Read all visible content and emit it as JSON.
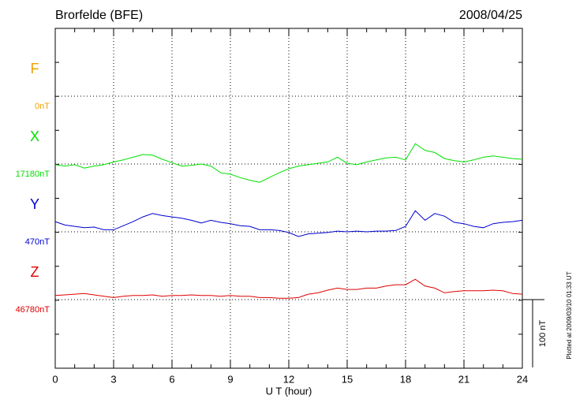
{
  "chart_data": {
    "type": "line",
    "title": "Brorfelde (BFE)",
    "date": "2008/04/25",
    "xlabel": "U T (hour)",
    "footnote": "Plotted at 2009/03/10 01:33 UT",
    "xlim": [
      0,
      24
    ],
    "xticks": [
      0,
      3,
      6,
      9,
      12,
      15,
      18,
      21,
      24
    ],
    "scale_bar": {
      "value": 100,
      "label": "100 nT"
    },
    "x": [
      0,
      0.5,
      1,
      1.5,
      2,
      2.5,
      3,
      3.5,
      4,
      4.5,
      5,
      5.5,
      6,
      6.5,
      7,
      7.5,
      8,
      8.5,
      9,
      9.5,
      10,
      10.5,
      11,
      11.5,
      12,
      12.5,
      13,
      13.5,
      14,
      14.5,
      15,
      15.5,
      16,
      16.5,
      17,
      17.5,
      18,
      18.5,
      19,
      19.5,
      20,
      20.5,
      21,
      21.5,
      22,
      22.5,
      23,
      23.5,
      24
    ],
    "series": [
      {
        "name": "F",
        "color": "#f0a000",
        "baseline": {
          "value": 0,
          "label": "0nT"
        },
        "values": [
          null,
          null,
          null,
          null,
          null,
          null,
          null,
          null,
          null,
          null,
          null,
          null,
          null,
          null,
          null,
          null,
          null,
          null,
          null,
          null,
          null,
          null,
          null,
          null,
          null,
          null,
          null,
          null,
          null,
          null,
          null,
          null,
          null,
          null,
          null,
          null,
          null,
          null,
          null,
          null,
          null,
          null,
          null,
          null,
          null,
          null,
          null,
          null,
          null
        ]
      },
      {
        "name": "X",
        "color": "#00e000",
        "baseline": {
          "value": 17180,
          "label": "17180nT"
        },
        "values": [
          17179,
          17177,
          17179,
          17174,
          17177,
          17179,
          17183,
          17186,
          17190,
          17194,
          17193,
          17187,
          17182,
          17177,
          17178,
          17180,
          17177,
          17167,
          17165,
          17160,
          17156,
          17153,
          17160,
          17167,
          17173,
          17177,
          17179,
          17181,
          17183,
          17190,
          17181,
          17179,
          17183,
          17186,
          17189,
          17190,
          17186,
          17210,
          17200,
          17197,
          17188,
          17185,
          17183,
          17186,
          17190,
          17192,
          17190,
          17188,
          17187
        ]
      },
      {
        "name": "Y",
        "color": "#0000d0",
        "baseline": {
          "value": 470,
          "label": "470nT"
        },
        "values": [
          485,
          480,
          478,
          476,
          477,
          473,
          473,
          479,
          485,
          492,
          497,
          494,
          492,
          490,
          487,
          483,
          487,
          484,
          482,
          479,
          478,
          473,
          473,
          472,
          469,
          463,
          467,
          468,
          469,
          471,
          470,
          471,
          470,
          471,
          471,
          472,
          478,
          501,
          487,
          497,
          493,
          484,
          482,
          478,
          476,
          482,
          484,
          485,
          487
        ]
      },
      {
        "name": "Z",
        "color": "#e00000",
        "baseline": {
          "value": 46780,
          "label": "46780nT"
        },
        "values": [
          46786,
          46787,
          46788,
          46789,
          46787,
          46785,
          46783,
          46785,
          46786,
          46786,
          46787,
          46785,
          46786,
          46786,
          46787,
          46786,
          46786,
          46785,
          46786,
          46785,
          46785,
          46783,
          46783,
          46782,
          46782,
          46783,
          46788,
          46790,
          46794,
          46797,
          46795,
          46795,
          46797,
          46797,
          46800,
          46802,
          46802,
          46810,
          46800,
          46797,
          46790,
          46792,
          46793,
          46793,
          46793,
          46794,
          46793,
          46789,
          46788
        ]
      }
    ]
  }
}
